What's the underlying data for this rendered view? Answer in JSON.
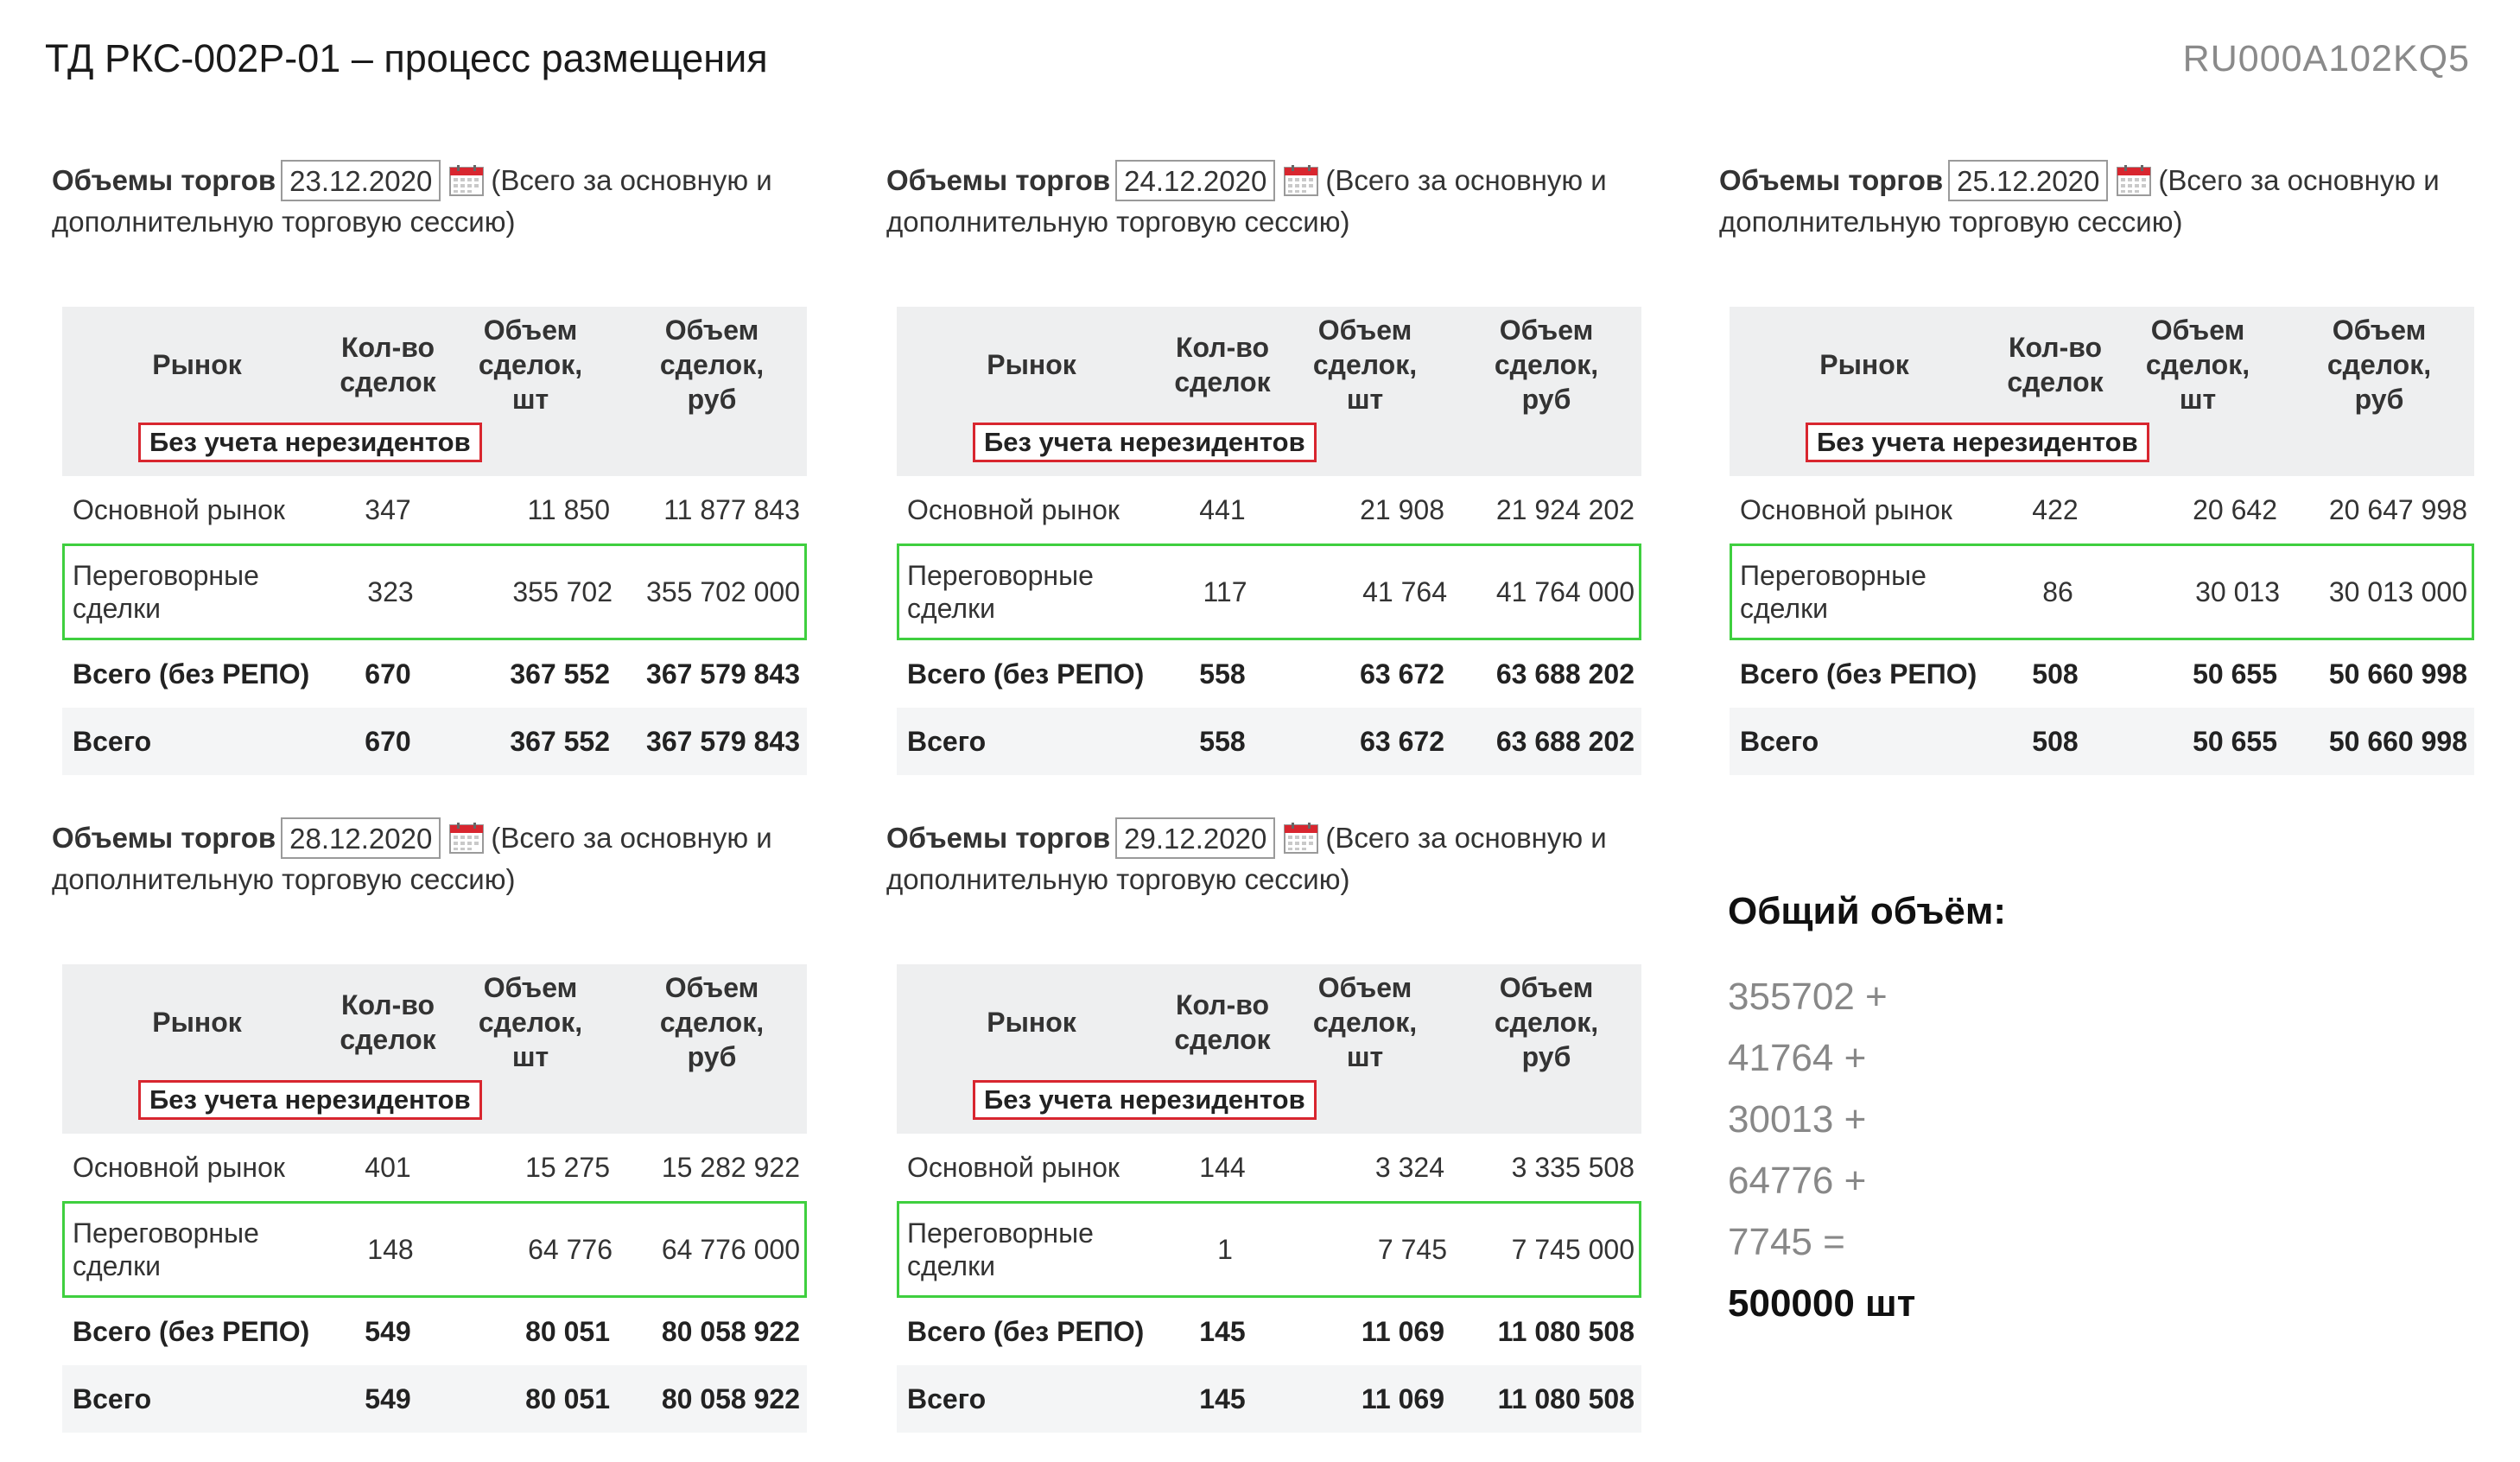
{
  "page": {
    "title": "ТД РКС-002Р-01 – процесс размещения",
    "isin": "RU000A102KQ5"
  },
  "common": {
    "label": "Объемы торгов",
    "note_1": "(Всего за основную и",
    "note_2": "дополнительную торговую сессию)",
    "h_market": "Рынок",
    "h_count_1": "Кол-во",
    "h_count_2": "сделок",
    "h_vol_1": "Объем",
    "h_vol_2": "сделок,",
    "h_vol_3": "шт",
    "h_rub_3": "руб",
    "nonres": "Без учета нерезидентов",
    "row_main": "Основной рынок",
    "row_neg_1": "Переговорные",
    "row_neg_2": "сделки",
    "row_total_norepo": "Всего (без РЕПО)",
    "row_total": "Всего"
  },
  "panels": [
    {
      "date": "23.12.2020",
      "main": [
        "347",
        "11 850",
        "11 877 843"
      ],
      "neg": [
        "323",
        "355 702",
        "355 702 000"
      ],
      "total_norepo": [
        "670",
        "367 552",
        "367 579 843"
      ],
      "total": [
        "670",
        "367 552",
        "367 579 843"
      ]
    },
    {
      "date": "24.12.2020",
      "main": [
        "441",
        "21 908",
        "21 924 202"
      ],
      "neg": [
        "117",
        "41 764",
        "41 764 000"
      ],
      "total_norepo": [
        "558",
        "63 672",
        "63 688 202"
      ],
      "total": [
        "558",
        "63 672",
        "63 688 202"
      ]
    },
    {
      "date": "25.12.2020",
      "main": [
        "422",
        "20 642",
        "20 647 998"
      ],
      "neg": [
        "86",
        "30 013",
        "30 013 000"
      ],
      "total_norepo": [
        "508",
        "50 655",
        "50 660 998"
      ],
      "total": [
        "508",
        "50 655",
        "50 660 998"
      ]
    },
    {
      "date": "28.12.2020",
      "main": [
        "401",
        "15 275",
        "15 282 922"
      ],
      "neg": [
        "148",
        "64 776",
        "64 776 000"
      ],
      "total_norepo": [
        "549",
        "80 051",
        "80 058 922"
      ],
      "total": [
        "549",
        "80 051",
        "80 058 922"
      ]
    },
    {
      "date": "29.12.2020",
      "main": [
        "144",
        "3 324",
        "3 335 508"
      ],
      "neg": [
        "1",
        "7 745",
        "7 745 000"
      ],
      "total_norepo": [
        "145",
        "11 069",
        "11 080 508"
      ],
      "total": [
        "145",
        "11 069",
        "11 080 508"
      ]
    }
  ],
  "summary": {
    "title": "Общий объём:",
    "terms": [
      "355702 +",
      "41764 +",
      "30013 +",
      "64776 +",
      "7745 ="
    ],
    "total": "500000 шт"
  },
  "colors": {
    "nonresident_border": "#d8262f",
    "negotiated_border": "#3fcf3f",
    "header_bg": "#eeeff0"
  },
  "icons": {
    "date_picker": "calendar-icon"
  }
}
